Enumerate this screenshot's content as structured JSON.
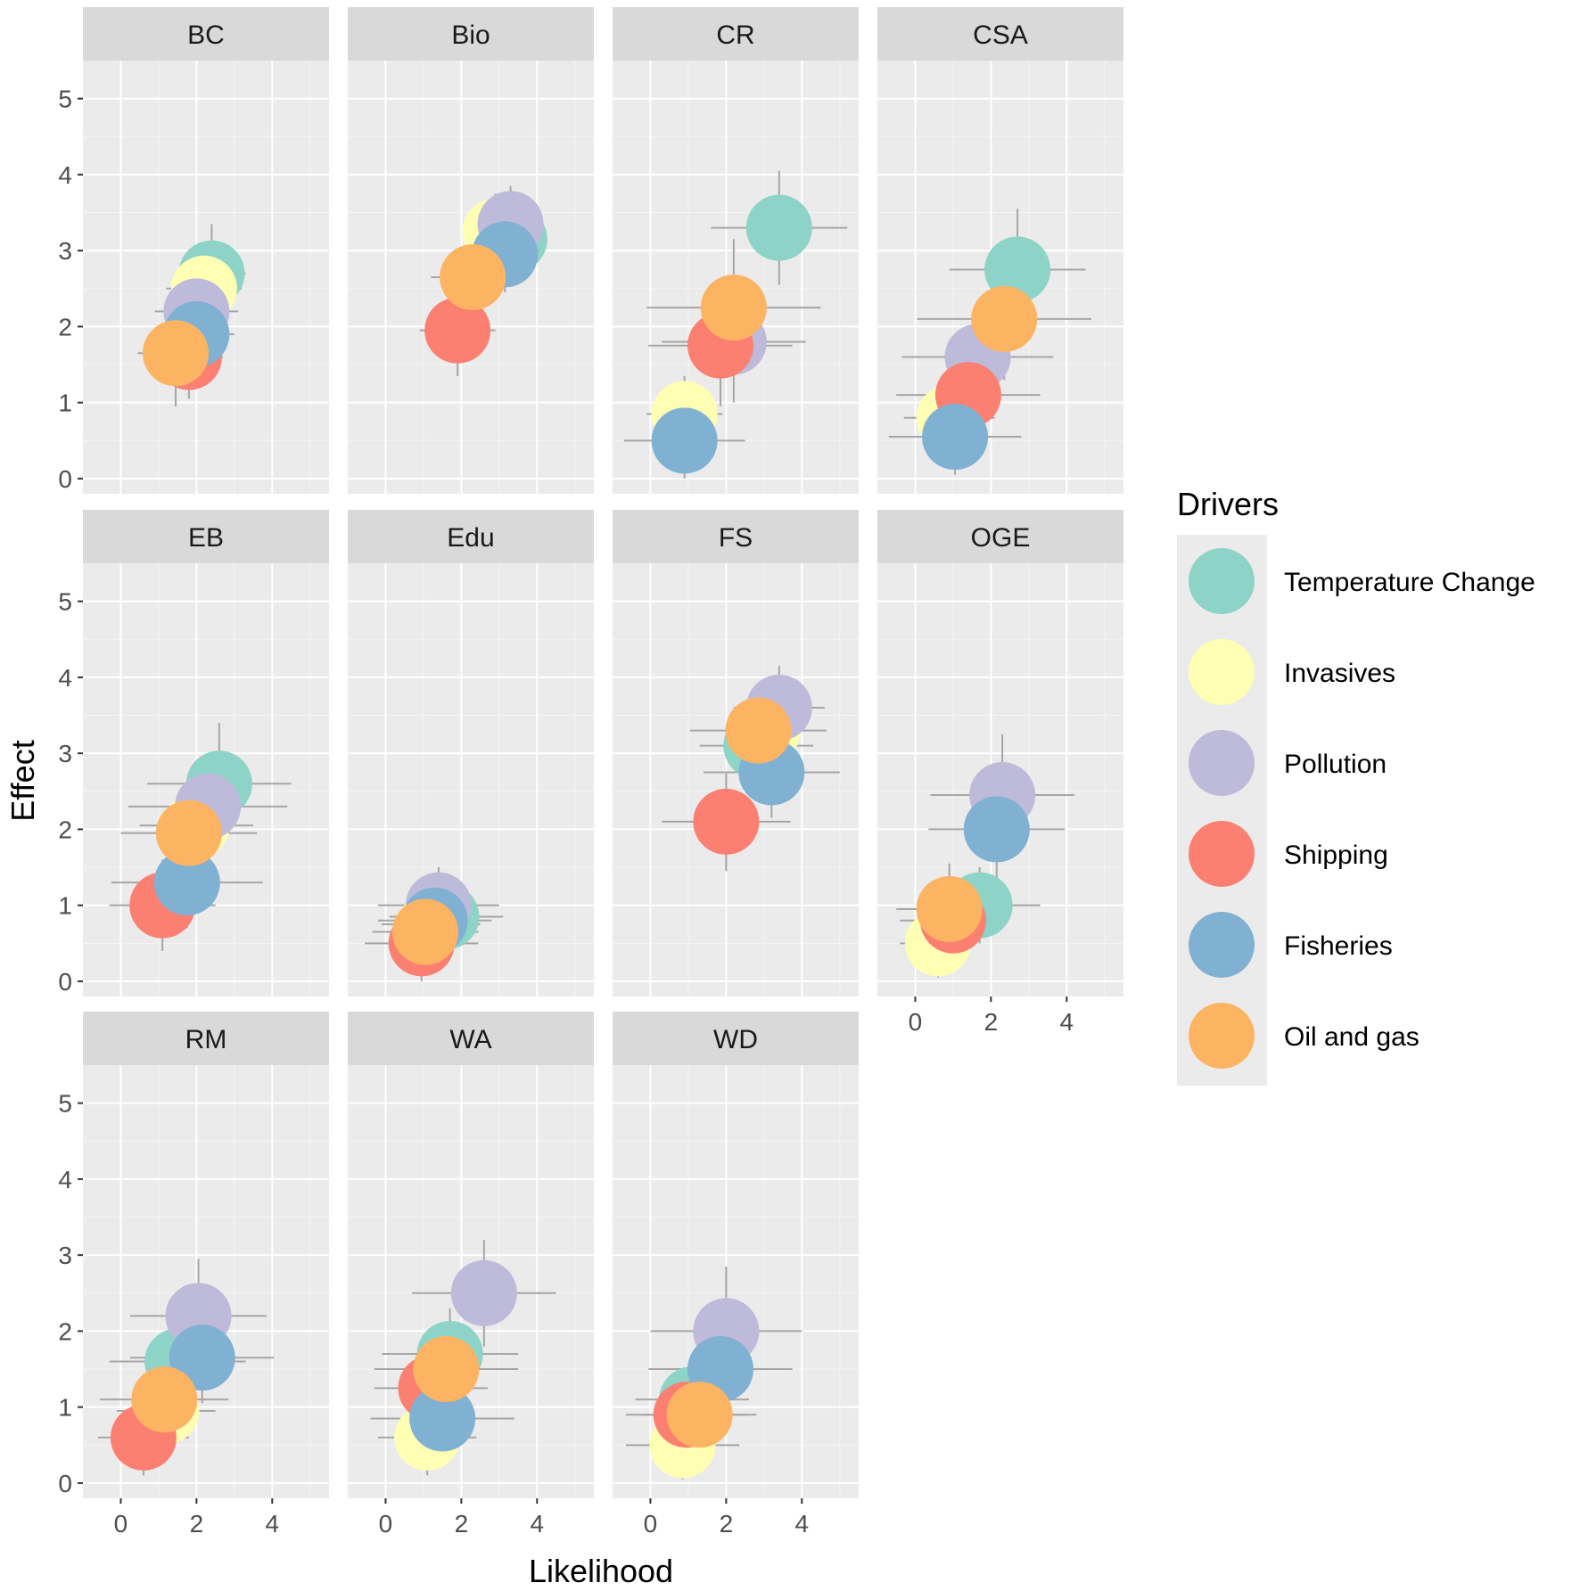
{
  "chart_data": {
    "type": "scatter",
    "xlabel": "Likelihood",
    "ylabel": "Effect",
    "xlim": [
      -1,
      5.5
    ],
    "ylim": [
      -0.2,
      5.5
    ],
    "x_ticks": [
      0,
      2,
      4
    ],
    "y_ticks": [
      0,
      1,
      2,
      3,
      4,
      5
    ],
    "grid": true,
    "legend": {
      "title": "Drivers",
      "placement": "right",
      "entries": [
        {
          "name": "Temperature Change",
          "color": "#8DD3C7"
        },
        {
          "name": "Invasives",
          "color": "#FFFFB3"
        },
        {
          "name": "Pollution",
          "color": "#BEBADA"
        },
        {
          "name": "Shipping",
          "color": "#FB8072"
        },
        {
          "name": "Fisheries",
          "color": "#80B1D3"
        },
        {
          "name": "Oil and gas",
          "color": "#FDB462"
        }
      ]
    },
    "panels": [
      {
        "label": "BC",
        "points": [
          {
            "driver": "Temperature Change",
            "x": 2.4,
            "y": 2.7,
            "xerr": 0.9,
            "yerr": 0.65
          },
          {
            "driver": "Invasives",
            "x": 2.2,
            "y": 2.5,
            "xerr": 1.0,
            "yerr": 0.6
          },
          {
            "driver": "Pollution",
            "x": 2.0,
            "y": 2.2,
            "xerr": 1.1,
            "yerr": 0.6
          },
          {
            "driver": "Shipping",
            "x": 1.8,
            "y": 1.6,
            "xerr": 0.9,
            "yerr": 0.55
          },
          {
            "driver": "Fisheries",
            "x": 2.0,
            "y": 1.9,
            "xerr": 1.0,
            "yerr": 0.6
          },
          {
            "driver": "Oil and gas",
            "x": 1.45,
            "y": 1.65,
            "xerr": 1.0,
            "yerr": 0.7
          }
        ]
      },
      {
        "label": "Bio",
        "points": [
          {
            "driver": "Temperature Change",
            "x": 3.4,
            "y": 3.15,
            "xerr": 0.8,
            "yerr": 0.5
          },
          {
            "driver": "Invasives",
            "x": 2.9,
            "y": 3.25,
            "xerr": 0.8,
            "yerr": 0.5
          },
          {
            "driver": "Pollution",
            "x": 3.3,
            "y": 3.35,
            "xerr": 0.8,
            "yerr": 0.5
          },
          {
            "driver": "Shipping",
            "x": 1.9,
            "y": 1.95,
            "xerr": 1.0,
            "yerr": 0.6
          },
          {
            "driver": "Fisheries",
            "x": 3.15,
            "y": 2.95,
            "xerr": 0.9,
            "yerr": 0.5
          },
          {
            "driver": "Oil and gas",
            "x": 2.3,
            "y": 2.65,
            "xerr": 1.1,
            "yerr": 0.6
          }
        ]
      },
      {
        "label": "CR",
        "points": [
          {
            "driver": "Temperature Change",
            "x": 3.4,
            "y": 3.3,
            "xerr": 1.8,
            "yerr": 0.75
          },
          {
            "driver": "Invasives",
            "x": 0.9,
            "y": 0.85,
            "xerr": 1.0,
            "yerr": 0.5
          },
          {
            "driver": "Pollution",
            "x": 2.2,
            "y": 1.8,
            "xerr": 1.9,
            "yerr": 0.8
          },
          {
            "driver": "Shipping",
            "x": 1.85,
            "y": 1.75,
            "xerr": 1.9,
            "yerr": 0.8
          },
          {
            "driver": "Fisheries",
            "x": 0.9,
            "y": 0.5,
            "xerr": 1.6,
            "yerr": 0.5
          },
          {
            "driver": "Oil and gas",
            "x": 2.2,
            "y": 2.25,
            "xerr": 2.3,
            "yerr": 0.9
          }
        ]
      },
      {
        "label": "CSA",
        "points": [
          {
            "driver": "Temperature Change",
            "x": 2.7,
            "y": 2.75,
            "xerr": 1.8,
            "yerr": 0.8
          },
          {
            "driver": "Invasives",
            "x": 0.9,
            "y": 0.8,
            "xerr": 1.2,
            "yerr": 0.5
          },
          {
            "driver": "Pollution",
            "x": 1.65,
            "y": 1.6,
            "xerr": 2.0,
            "yerr": 0.6
          },
          {
            "driver": "Shipping",
            "x": 1.4,
            "y": 1.1,
            "xerr": 1.9,
            "yerr": 0.6
          },
          {
            "driver": "Fisheries",
            "x": 1.05,
            "y": 0.55,
            "xerr": 1.75,
            "yerr": 0.5
          },
          {
            "driver": "Oil and gas",
            "x": 2.35,
            "y": 2.1,
            "xerr": 2.3,
            "yerr": 0.8
          }
        ]
      },
      {
        "label": "EB",
        "points": [
          {
            "driver": "Temperature Change",
            "x": 2.6,
            "y": 2.6,
            "xerr": 1.9,
            "yerr": 0.8
          },
          {
            "driver": "Invasives",
            "x": 2.0,
            "y": 2.05,
            "xerr": 1.5,
            "yerr": 0.6
          },
          {
            "driver": "Pollution",
            "x": 2.3,
            "y": 2.3,
            "xerr": 2.1,
            "yerr": 0.7
          },
          {
            "driver": "Shipping",
            "x": 1.1,
            "y": 1.0,
            "xerr": 1.4,
            "yerr": 0.6
          },
          {
            "driver": "Fisheries",
            "x": 1.75,
            "y": 1.3,
            "xerr": 2.0,
            "yerr": 0.6
          },
          {
            "driver": "Oil and gas",
            "x": 1.8,
            "y": 1.95,
            "xerr": 1.8,
            "yerr": 0.7
          }
        ]
      },
      {
        "label": "Edu",
        "points": [
          {
            "driver": "Temperature Change",
            "x": 1.6,
            "y": 0.85,
            "xerr": 1.5,
            "yerr": 0.5
          },
          {
            "driver": "Invasives",
            "x": 1.2,
            "y": 0.75,
            "xerr": 1.3,
            "yerr": 0.5
          },
          {
            "driver": "Pollution",
            "x": 1.4,
            "y": 1.0,
            "xerr": 1.6,
            "yerr": 0.5
          },
          {
            "driver": "Shipping",
            "x": 0.95,
            "y": 0.5,
            "xerr": 1.5,
            "yerr": 0.5
          },
          {
            "driver": "Fisheries",
            "x": 1.3,
            "y": 0.8,
            "xerr": 1.5,
            "yerr": 0.5
          },
          {
            "driver": "Oil and gas",
            "x": 1.05,
            "y": 0.65,
            "xerr": 1.4,
            "yerr": 0.5
          }
        ]
      },
      {
        "label": "FS",
        "points": [
          {
            "driver": "Temperature Change",
            "x": 2.8,
            "y": 3.1,
            "xerr": 1.5,
            "yerr": 0.6
          },
          {
            "driver": "Invasives",
            "x": 3.1,
            "y": 3.3,
            "xerr": 1.0,
            "yerr": 0.5
          },
          {
            "driver": "Pollution",
            "x": 3.4,
            "y": 3.6,
            "xerr": 1.2,
            "yerr": 0.55
          },
          {
            "driver": "Shipping",
            "x": 2.0,
            "y": 2.1,
            "xerr": 1.7,
            "yerr": 0.65
          },
          {
            "driver": "Fisheries",
            "x": 3.2,
            "y": 2.75,
            "xerr": 1.8,
            "yerr": 0.6
          },
          {
            "driver": "Oil and gas",
            "x": 2.85,
            "y": 3.3,
            "xerr": 1.8,
            "yerr": 0.6
          }
        ]
      },
      {
        "label": "OGE",
        "points": [
          {
            "driver": "Temperature Change",
            "x": 1.7,
            "y": 1.0,
            "xerr": 1.6,
            "yerr": 0.5
          },
          {
            "driver": "Invasives",
            "x": 0.6,
            "y": 0.5,
            "xerr": 1.0,
            "yerr": 0.45
          },
          {
            "driver": "Pollution",
            "x": 2.3,
            "y": 2.45,
            "xerr": 1.9,
            "yerr": 0.8
          },
          {
            "driver": "Shipping",
            "x": 1.0,
            "y": 0.8,
            "xerr": 1.4,
            "yerr": 0.5
          },
          {
            "driver": "Fisheries",
            "x": 2.15,
            "y": 2.0,
            "xerr": 1.8,
            "yerr": 0.8
          },
          {
            "driver": "Oil and gas",
            "x": 0.9,
            "y": 0.95,
            "xerr": 1.4,
            "yerr": 0.6
          }
        ]
      },
      {
        "label": "RM",
        "points": [
          {
            "driver": "Temperature Change",
            "x": 1.5,
            "y": 1.6,
            "xerr": 1.8,
            "yerr": 0.6
          },
          {
            "driver": "Invasives",
            "x": 1.2,
            "y": 0.95,
            "xerr": 1.3,
            "yerr": 0.5
          },
          {
            "driver": "Pollution",
            "x": 2.05,
            "y": 2.2,
            "xerr": 1.8,
            "yerr": 0.75
          },
          {
            "driver": "Shipping",
            "x": 0.6,
            "y": 0.6,
            "xerr": 1.2,
            "yerr": 0.5
          },
          {
            "driver": "Fisheries",
            "x": 2.15,
            "y": 1.65,
            "xerr": 1.9,
            "yerr": 0.6
          },
          {
            "driver": "Oil and gas",
            "x": 1.15,
            "y": 1.1,
            "xerr": 1.7,
            "yerr": 0.6
          }
        ]
      },
      {
        "label": "WA",
        "points": [
          {
            "driver": "Temperature Change",
            "x": 1.7,
            "y": 1.7,
            "xerr": 1.8,
            "yerr": 0.6
          },
          {
            "driver": "Invasives",
            "x": 1.1,
            "y": 0.6,
            "xerr": 1.3,
            "yerr": 0.5
          },
          {
            "driver": "Pollution",
            "x": 2.6,
            "y": 2.5,
            "xerr": 1.9,
            "yerr": 0.7
          },
          {
            "driver": "Shipping",
            "x": 1.2,
            "y": 1.25,
            "xerr": 1.5,
            "yerr": 0.55
          },
          {
            "driver": "Fisheries",
            "x": 1.5,
            "y": 0.85,
            "xerr": 1.9,
            "yerr": 0.55
          },
          {
            "driver": "Oil and gas",
            "x": 1.6,
            "y": 1.5,
            "xerr": 1.9,
            "yerr": 0.6
          }
        ]
      },
      {
        "label": "WD",
        "points": [
          {
            "driver": "Temperature Change",
            "x": 1.1,
            "y": 1.1,
            "xerr": 1.5,
            "yerr": 0.55
          },
          {
            "driver": "Invasives",
            "x": 0.85,
            "y": 0.5,
            "xerr": 1.5,
            "yerr": 0.45
          },
          {
            "driver": "Pollution",
            "x": 2.0,
            "y": 2.0,
            "xerr": 2.0,
            "yerr": 0.85
          },
          {
            "driver": "Shipping",
            "x": 0.95,
            "y": 0.9,
            "xerr": 1.6,
            "yerr": 0.6
          },
          {
            "driver": "Fisheries",
            "x": 1.85,
            "y": 1.5,
            "xerr": 1.9,
            "yerr": 0.6
          },
          {
            "driver": "Oil and gas",
            "x": 1.3,
            "y": 0.9,
            "xerr": 1.5,
            "yerr": 0.55
          }
        ]
      }
    ]
  }
}
